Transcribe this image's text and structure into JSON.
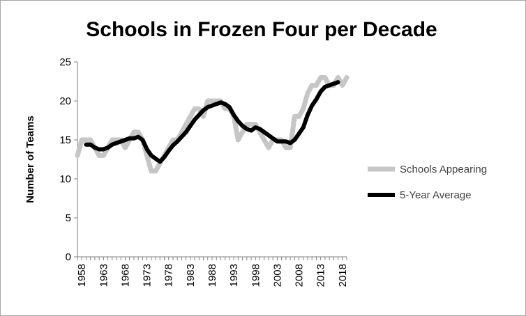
{
  "chart_data": {
    "type": "line",
    "title": "Schools in Frozen Four per Decade",
    "xlabel": "",
    "ylabel": "Number of Teams",
    "xlim": [
      1957,
      2019
    ],
    "ylim": [
      0,
      25
    ],
    "x_ticks": [
      1958,
      1963,
      1968,
      1973,
      1978,
      1983,
      1988,
      1993,
      1998,
      2003,
      2008,
      2013,
      2018
    ],
    "y_ticks": [
      0,
      5,
      10,
      15,
      20,
      25
    ],
    "grid": false,
    "legend_position": "right",
    "series": [
      {
        "name": "Schools Appearing",
        "color": "#c6c6c6",
        "x": [
          1957,
          1958,
          1959,
          1960,
          1961,
          1962,
          1963,
          1964,
          1965,
          1966,
          1967,
          1968,
          1969,
          1970,
          1971,
          1972,
          1973,
          1974,
          1975,
          1976,
          1977,
          1978,
          1979,
          1980,
          1981,
          1982,
          1983,
          1984,
          1985,
          1986,
          1987,
          1988,
          1989,
          1990,
          1991,
          1992,
          1993,
          1994,
          1995,
          1996,
          1997,
          1998,
          1999,
          2000,
          2001,
          2002,
          2003,
          2004,
          2005,
          2006,
          2007,
          2008,
          2009,
          2010,
          2011,
          2012,
          2013,
          2014,
          2015,
          2016,
          2017,
          2018,
          2019
        ],
        "y": [
          13,
          15,
          15,
          15,
          14,
          13,
          13,
          14,
          15,
          15,
          15,
          14,
          15,
          16,
          16,
          15,
          13,
          11,
          11,
          12,
          13,
          14,
          15,
          15,
          16,
          17,
          18,
          19,
          19,
          18,
          20,
          20,
          20,
          20,
          19,
          19,
          18,
          15,
          16,
          17,
          17,
          17,
          16,
          15,
          14,
          15,
          15,
          15,
          14,
          14,
          18,
          18,
          19,
          21,
          22,
          22,
          23,
          23,
          22,
          22,
          23,
          22,
          23
        ]
      },
      {
        "name": "5-Year Average",
        "color": "#000000",
        "x": [
          1959,
          1960,
          1961,
          1962,
          1963,
          1964,
          1965,
          1966,
          1967,
          1968,
          1969,
          1970,
          1971,
          1972,
          1973,
          1974,
          1975,
          1976,
          1977,
          1978,
          1979,
          1980,
          1981,
          1982,
          1983,
          1984,
          1985,
          1986,
          1987,
          1988,
          1989,
          1990,
          1991,
          1992,
          1993,
          1994,
          1995,
          1996,
          1997,
          1998,
          1999,
          2000,
          2001,
          2002,
          2003,
          2004,
          2005,
          2006,
          2007,
          2008,
          2009,
          2010,
          2011,
          2012,
          2013,
          2014,
          2015,
          2016,
          2017
        ],
        "y": [
          14.4,
          14.4,
          14.0,
          13.8,
          13.8,
          14.0,
          14.4,
          14.6,
          14.8,
          15.0,
          15.2,
          15.2,
          15.4,
          15.0,
          13.8,
          13.0,
          12.6,
          12.2,
          12.8,
          13.6,
          14.3,
          14.8,
          15.4,
          16.0,
          16.8,
          17.6,
          18.2,
          18.8,
          19.2,
          19.4,
          19.6,
          19.8,
          19.6,
          19.2,
          18.2,
          17.4,
          16.8,
          16.4,
          16.2,
          16.6,
          16.4,
          16.0,
          15.6,
          15.2,
          14.8,
          14.8,
          14.8,
          14.6,
          15.0,
          15.8,
          16.6,
          18.2,
          19.4,
          20.2,
          21.2,
          21.8,
          22.0,
          22.2,
          22.4
        ]
      }
    ]
  }
}
